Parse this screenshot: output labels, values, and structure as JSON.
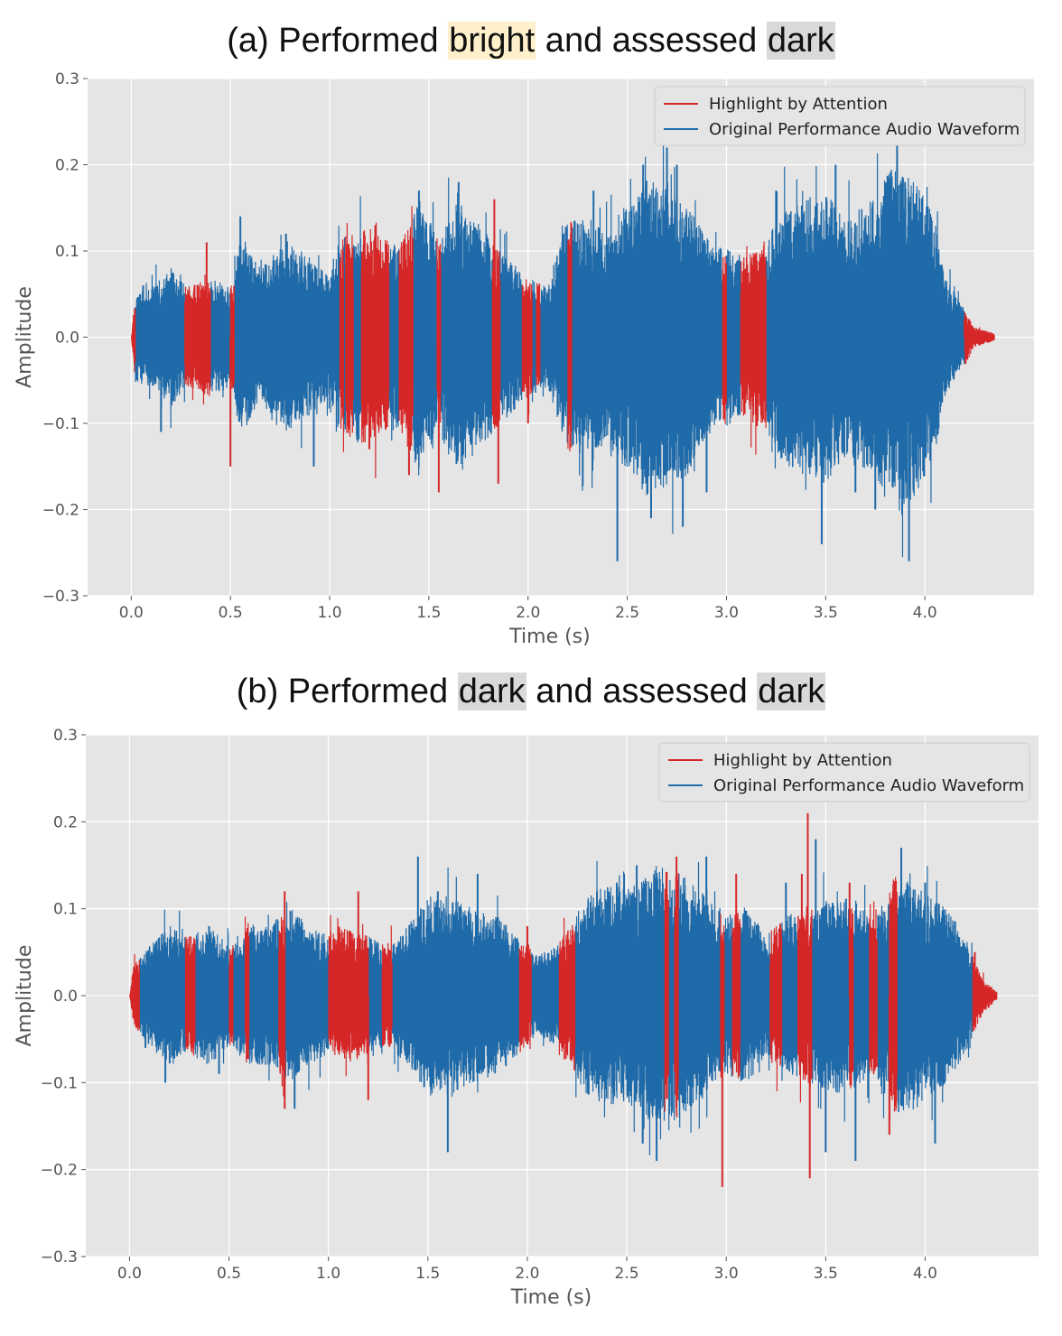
{
  "colors": {
    "highlight": "#d62728",
    "waveform": "#1f6aa8",
    "plot_bg": "#e5e5e5",
    "grid": "#ffffff",
    "bright_bg": "#fff0cc",
    "dark_bg": "#d9d9d9"
  },
  "chart_data": [
    {
      "type": "line",
      "title_parts": [
        "(a) Performed ",
        "bright",
        " and assessed ",
        "dark"
      ],
      "xlabel": "Time (s)",
      "ylabel": "Amplitude",
      "xlim": [
        -0.22,
        4.55
      ],
      "ylim": [
        -0.3,
        0.3
      ],
      "xticks": [
        "0.0",
        "0.5",
        "1.0",
        "1.5",
        "2.0",
        "2.5",
        "3.0",
        "3.5",
        "4.0"
      ],
      "yticks": [
        "0.3",
        "0.2",
        "0.1",
        "0.0",
        "−0.1",
        "−0.2",
        "−0.3"
      ],
      "grid": true,
      "legend": [
        "Highlight by Attention",
        "Original Performance Audio Waveform"
      ],
      "legend_position": "top-right",
      "duration": 4.35,
      "envelope": [
        [
          0.0,
          0.0
        ],
        [
          0.02,
          0.045
        ],
        [
          0.1,
          0.05
        ],
        [
          0.2,
          0.07
        ],
        [
          0.28,
          0.05
        ],
        [
          0.4,
          0.06
        ],
        [
          0.5,
          0.05
        ],
        [
          0.55,
          0.1
        ],
        [
          0.65,
          0.07
        ],
        [
          0.78,
          0.1
        ],
        [
          0.9,
          0.08
        ],
        [
          1.0,
          0.06
        ],
        [
          1.05,
          0.1
        ],
        [
          1.2,
          0.11
        ],
        [
          1.35,
          0.09
        ],
        [
          1.45,
          0.14
        ],
        [
          1.55,
          0.1
        ],
        [
          1.65,
          0.14
        ],
        [
          1.85,
          0.09
        ],
        [
          2.0,
          0.06
        ],
        [
          2.1,
          0.05
        ],
        [
          2.2,
          0.12
        ],
        [
          2.4,
          0.11
        ],
        [
          2.6,
          0.16
        ],
        [
          2.8,
          0.14
        ],
        [
          2.9,
          0.1
        ],
        [
          3.0,
          0.09
        ],
        [
          3.1,
          0.08
        ],
        [
          3.2,
          0.1
        ],
        [
          3.3,
          0.13
        ],
        [
          3.5,
          0.15
        ],
        [
          3.6,
          0.12
        ],
        [
          3.75,
          0.14
        ],
        [
          3.85,
          0.18
        ],
        [
          3.95,
          0.16
        ],
        [
          4.05,
          0.12
        ],
        [
          4.1,
          0.06
        ],
        [
          4.2,
          0.03
        ],
        [
          4.25,
          0.01
        ],
        [
          4.35,
          0.004
        ]
      ],
      "peaks": [
        [
          0.06,
          0.06
        ],
        [
          0.15,
          -0.11
        ],
        [
          0.38,
          0.11
        ],
        [
          0.5,
          -0.15
        ],
        [
          0.55,
          0.14
        ],
        [
          0.78,
          0.12
        ],
        [
          0.92,
          -0.15
        ],
        [
          1.23,
          0.13
        ],
        [
          1.2,
          -0.13
        ],
        [
          1.45,
          0.17
        ],
        [
          1.4,
          -0.16
        ],
        [
          1.65,
          0.18
        ],
        [
          1.55,
          -0.18
        ],
        [
          1.83,
          0.16
        ],
        [
          1.85,
          -0.17
        ],
        [
          2.0,
          -0.1
        ],
        [
          2.33,
          0.17
        ],
        [
          2.45,
          -0.26
        ],
        [
          2.58,
          0.2
        ],
        [
          2.62,
          -0.21
        ],
        [
          2.7,
          0.22
        ],
        [
          2.75,
          0.2
        ],
        [
          2.78,
          -0.22
        ],
        [
          2.9,
          -0.18
        ],
        [
          3.25,
          0.17
        ],
        [
          3.48,
          -0.24
        ],
        [
          3.55,
          0.2
        ],
        [
          3.75,
          -0.2
        ],
        [
          3.86,
          0.23
        ],
        [
          3.9,
          0.18
        ],
        [
          3.92,
          -0.26
        ],
        [
          3.65,
          -0.18
        ],
        [
          4.2,
          0.02
        ]
      ],
      "highlight_ranges": [
        [
          0.0,
          0.02
        ],
        [
          0.27,
          0.4
        ],
        [
          0.5,
          0.52
        ],
        [
          1.05,
          1.07
        ],
        [
          1.08,
          1.12
        ],
        [
          1.16,
          1.3
        ],
        [
          1.35,
          1.42
        ],
        [
          1.54,
          1.56
        ],
        [
          1.82,
          1.86
        ],
        [
          1.97,
          2.02
        ],
        [
          2.04,
          2.06
        ],
        [
          2.2,
          2.22
        ],
        [
          2.98,
          3.0
        ],
        [
          3.07,
          3.2
        ],
        [
          4.2,
          4.35
        ]
      ],
      "seed": 7
    },
    {
      "type": "line",
      "title_parts": [
        "(b) Performed ",
        "dark",
        " and assessed ",
        "dark"
      ],
      "xlabel": "Time (s)",
      "ylabel": "Amplitude",
      "xlim": [
        -0.22,
        4.57
      ],
      "ylim": [
        -0.3,
        0.3
      ],
      "xticks": [
        "0.0",
        "0.5",
        "1.0",
        "1.5",
        "2.0",
        "2.5",
        "3.0",
        "3.5",
        "4.0"
      ],
      "yticks": [
        "0.3",
        "0.2",
        "0.1",
        "0.0",
        "−0.1",
        "−0.2",
        "−0.3"
      ],
      "grid": true,
      "legend": [
        "Highlight by Attention",
        "Original Performance Audio Waveform"
      ],
      "legend_position": "top-right",
      "duration": 4.36,
      "envelope": [
        [
          0.0,
          0.0
        ],
        [
          0.02,
          0.03
        ],
        [
          0.1,
          0.05
        ],
        [
          0.2,
          0.07
        ],
        [
          0.3,
          0.06
        ],
        [
          0.4,
          0.07
        ],
        [
          0.5,
          0.05
        ],
        [
          0.6,
          0.07
        ],
        [
          0.7,
          0.07
        ],
        [
          0.8,
          0.09
        ],
        [
          0.9,
          0.07
        ],
        [
          1.0,
          0.06
        ],
        [
          1.05,
          0.07
        ],
        [
          1.2,
          0.06
        ],
        [
          1.3,
          0.05
        ],
        [
          1.4,
          0.07
        ],
        [
          1.5,
          0.1
        ],
        [
          1.6,
          0.1
        ],
        [
          1.7,
          0.09
        ],
        [
          1.85,
          0.08
        ],
        [
          1.95,
          0.06
        ],
        [
          2.05,
          0.04
        ],
        [
          2.15,
          0.05
        ],
        [
          2.3,
          0.1
        ],
        [
          2.4,
          0.11
        ],
        [
          2.55,
          0.11
        ],
        [
          2.65,
          0.13
        ],
        [
          2.8,
          0.12
        ],
        [
          2.9,
          0.1
        ],
        [
          3.0,
          0.08
        ],
        [
          3.1,
          0.09
        ],
        [
          3.2,
          0.06
        ],
        [
          3.3,
          0.08
        ],
        [
          3.45,
          0.09
        ],
        [
          3.6,
          0.1
        ],
        [
          3.75,
          0.08
        ],
        [
          3.85,
          0.12
        ],
        [
          3.95,
          0.11
        ],
        [
          4.1,
          0.09
        ],
        [
          4.2,
          0.06
        ],
        [
          4.28,
          0.02
        ],
        [
          4.36,
          0.004
        ]
      ],
      "peaks": [
        [
          0.08,
          -0.06
        ],
        [
          0.18,
          -0.1
        ],
        [
          0.4,
          0.08
        ],
        [
          0.45,
          -0.09
        ],
        [
          0.78,
          0.12
        ],
        [
          0.78,
          -0.13
        ],
        [
          0.83,
          -0.13
        ],
        [
          1.15,
          0.12
        ],
        [
          1.2,
          -0.12
        ],
        [
          1.45,
          0.16
        ],
        [
          1.55,
          0.12
        ],
        [
          1.6,
          -0.18
        ],
        [
          1.75,
          0.14
        ],
        [
          2.0,
          0.08
        ],
        [
          2.35,
          0.12
        ],
        [
          2.45,
          0.13
        ],
        [
          2.55,
          0.15
        ],
        [
          2.58,
          -0.17
        ],
        [
          2.65,
          -0.19
        ],
        [
          2.7,
          0.14
        ],
        [
          2.75,
          0.16
        ],
        [
          2.9,
          0.16
        ],
        [
          2.98,
          -0.22
        ],
        [
          3.05,
          0.14
        ],
        [
          3.3,
          0.13
        ],
        [
          3.38,
          0.14
        ],
        [
          3.41,
          0.21
        ],
        [
          3.42,
          -0.21
        ],
        [
          3.45,
          0.18
        ],
        [
          3.5,
          -0.18
        ],
        [
          3.62,
          0.13
        ],
        [
          3.65,
          -0.19
        ],
        [
          3.88,
          0.17
        ],
        [
          3.82,
          -0.16
        ],
        [
          4.0,
          0.13
        ],
        [
          4.05,
          -0.17
        ],
        [
          4.25,
          0.05
        ]
      ],
      "highlight_ranges": [
        [
          0.0,
          0.05
        ],
        [
          0.28,
          0.33
        ],
        [
          0.5,
          0.52
        ],
        [
          0.58,
          0.6
        ],
        [
          0.75,
          0.78
        ],
        [
          1.0,
          1.2
        ],
        [
          1.27,
          1.32
        ],
        [
          1.96,
          2.02
        ],
        [
          2.16,
          2.24
        ],
        [
          2.69,
          2.71
        ],
        [
          2.74,
          2.76
        ],
        [
          2.97,
          2.99
        ],
        [
          3.03,
          3.07
        ],
        [
          3.22,
          3.28
        ],
        [
          3.36,
          3.43
        ],
        [
          3.62,
          3.64
        ],
        [
          3.72,
          3.76
        ],
        [
          3.82,
          3.86
        ],
        [
          4.24,
          4.36
        ]
      ],
      "seed": 13
    }
  ]
}
